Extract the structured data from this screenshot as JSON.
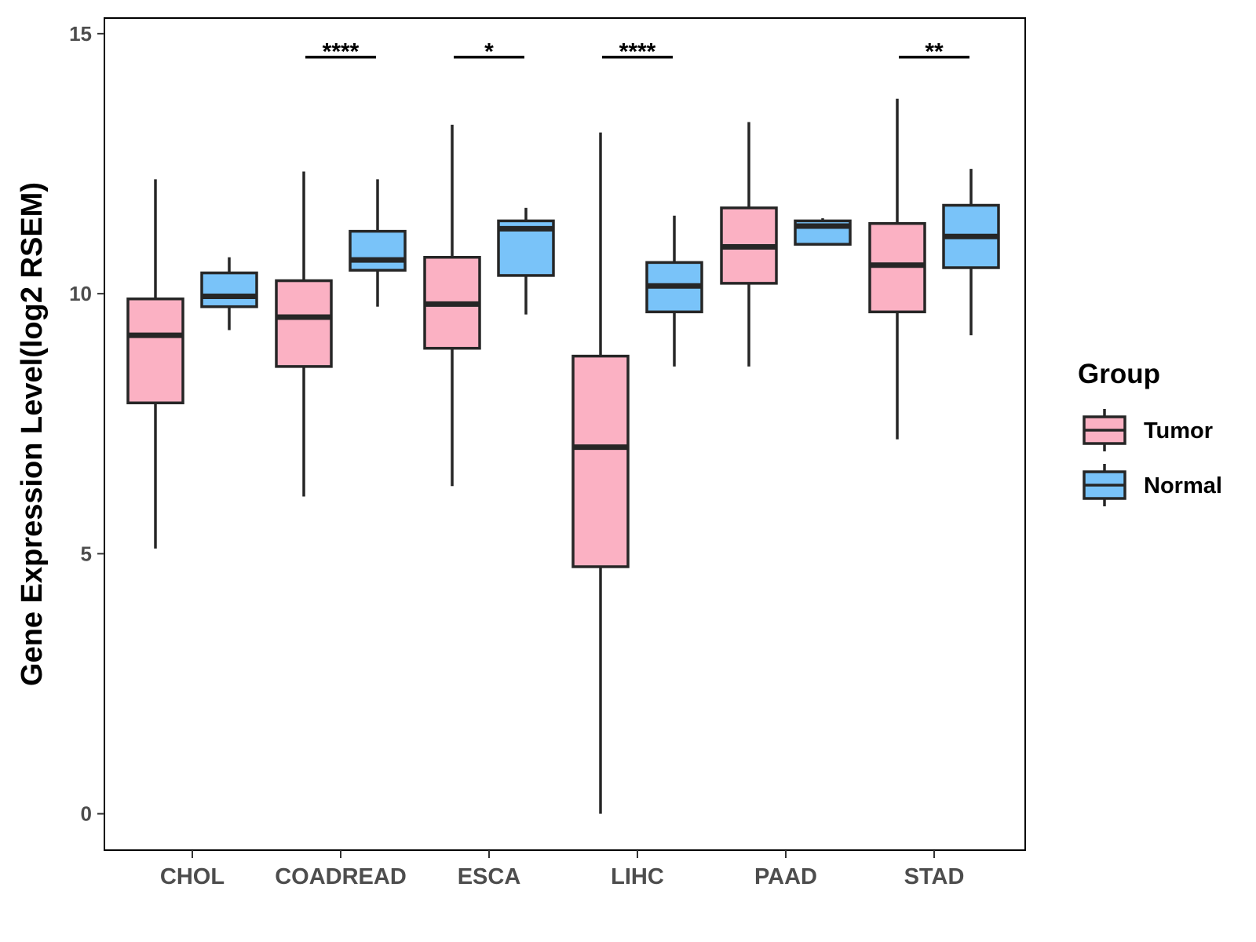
{
  "chart_data": {
    "type": "boxplot",
    "title": "",
    "xlabel": "",
    "ylabel": "Gene Expression Level(log2 RSEM)",
    "ylim": [
      -0.7,
      15.3
    ],
    "yticks": [
      0,
      5,
      10,
      15
    ],
    "ytick_labels": [
      "0",
      "5",
      "10",
      "15"
    ],
    "categories": [
      "CHOL",
      "COADREAD",
      "ESCA",
      "LIHC",
      "PAAD",
      "STAD"
    ],
    "series": [
      {
        "name": "Tumor",
        "color": "#FBB1C3",
        "boxes": [
          {
            "min": 5.1,
            "q1": 7.9,
            "median": 9.2,
            "q3": 9.9,
            "max": 12.2
          },
          {
            "min": 6.1,
            "q1": 8.6,
            "median": 9.55,
            "q3": 10.25,
            "max": 12.35
          },
          {
            "min": 6.3,
            "q1": 8.95,
            "median": 9.8,
            "q3": 10.7,
            "max": 13.25
          },
          {
            "min": 0.0,
            "q1": 4.75,
            "median": 7.05,
            "q3": 8.8,
            "max": 13.1
          },
          {
            "min": 8.6,
            "q1": 10.2,
            "median": 10.9,
            "q3": 11.65,
            "max": 13.3
          },
          {
            "min": 7.2,
            "q1": 9.65,
            "median": 10.55,
            "q3": 11.35,
            "max": 13.75
          }
        ]
      },
      {
        "name": "Normal",
        "color": "#79C3F9",
        "boxes": [
          {
            "min": 9.3,
            "q1": 9.75,
            "median": 9.95,
            "q3": 10.4,
            "max": 10.7
          },
          {
            "min": 9.75,
            "q1": 10.45,
            "median": 10.65,
            "q3": 11.2,
            "max": 12.2
          },
          {
            "min": 9.6,
            "q1": 10.35,
            "median": 11.25,
            "q3": 11.4,
            "max": 11.65
          },
          {
            "min": 8.6,
            "q1": 9.65,
            "median": 10.15,
            "q3": 10.6,
            "max": 11.5
          },
          {
            "min": 10.95,
            "q1": 10.95,
            "median": 11.3,
            "q3": 11.4,
            "max": 11.45
          },
          {
            "min": 9.2,
            "q1": 10.5,
            "median": 11.1,
            "q3": 11.7,
            "max": 12.4
          }
        ]
      }
    ],
    "significance": [
      {
        "category": "CHOL",
        "label": ""
      },
      {
        "category": "COADREAD",
        "label": "****"
      },
      {
        "category": "ESCA",
        "label": "*"
      },
      {
        "category": "LIHC",
        "label": "****"
      },
      {
        "category": "PAAD",
        "label": ""
      },
      {
        "category": "STAD",
        "label": "**"
      }
    ],
    "significance_bar_y": 14.55,
    "legend": {
      "title": "Group",
      "entries": [
        "Tumor",
        "Normal"
      ],
      "position": "right"
    },
    "grid": false
  }
}
